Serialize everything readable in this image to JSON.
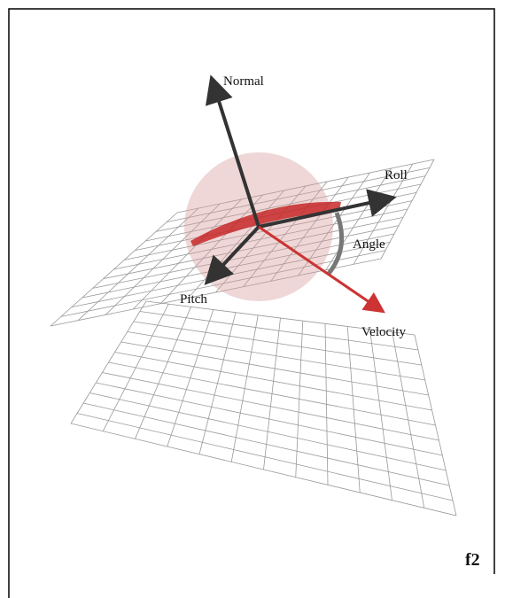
{
  "labels": {
    "normal": "Normal",
    "roll": "Roll",
    "angle": "Angle",
    "pitch": "Pitch",
    "velocity": "Velocity"
  },
  "figure_id": "f2"
}
